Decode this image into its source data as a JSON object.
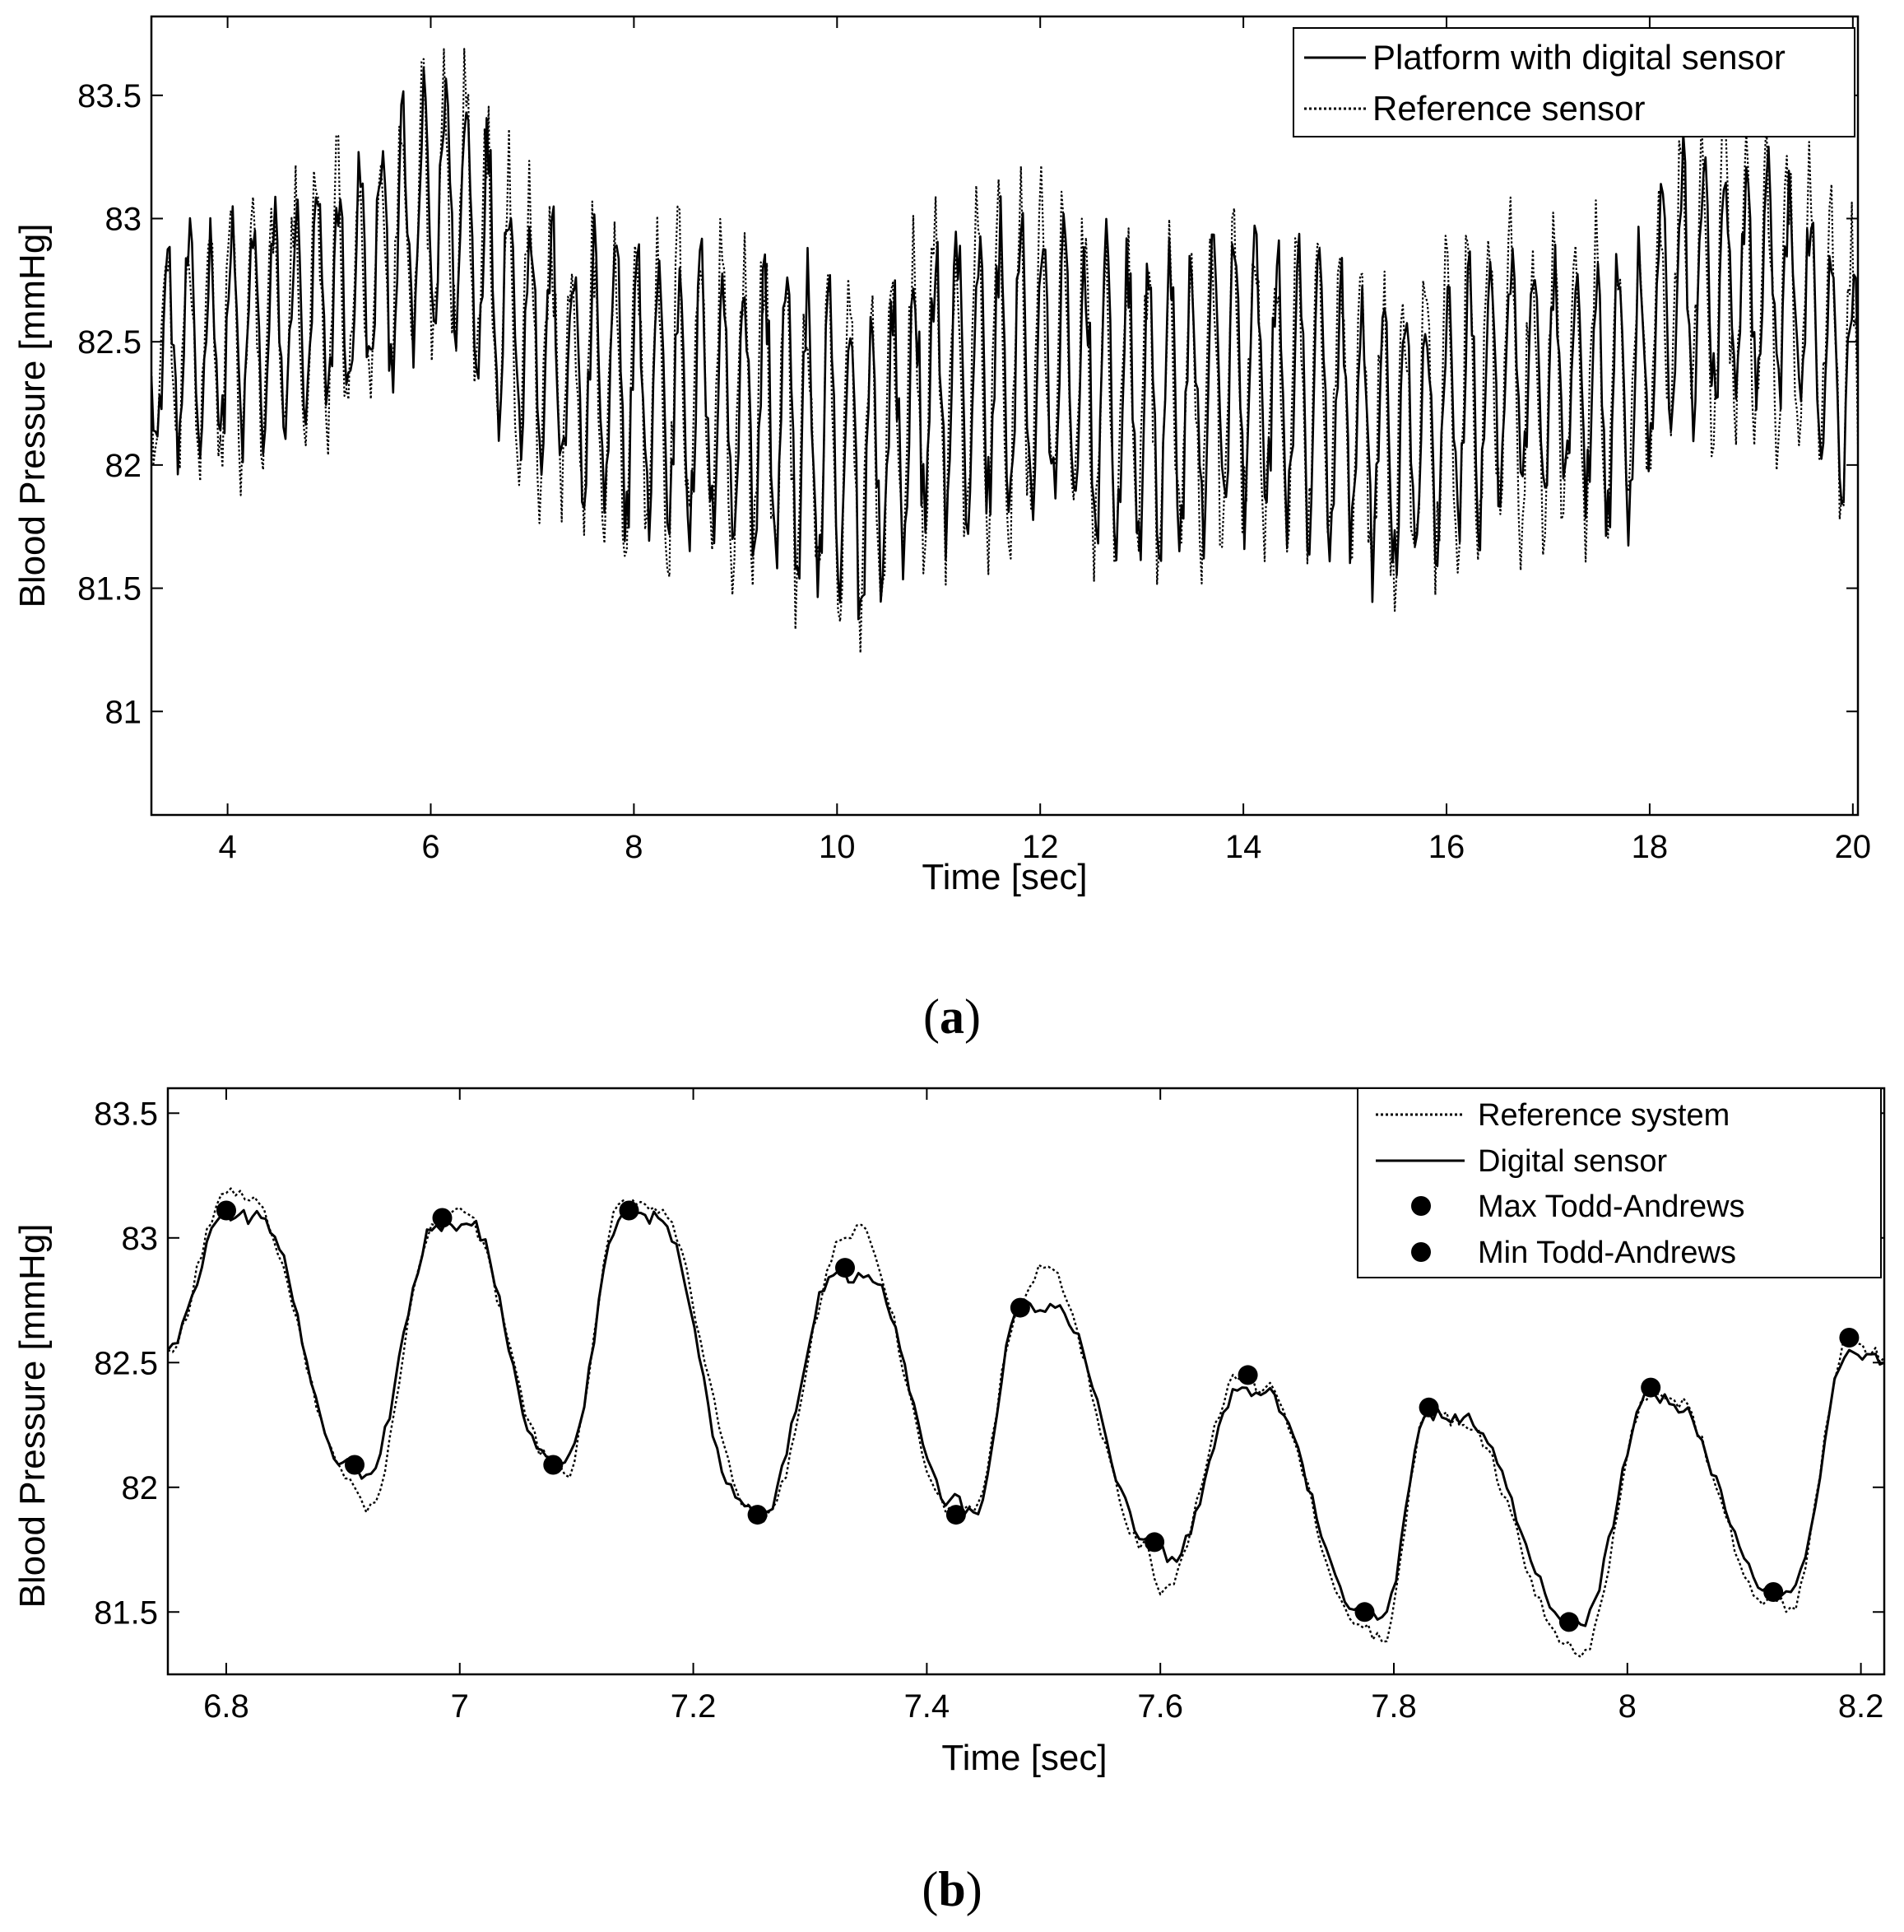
{
  "chart_data": [
    {
      "type": "line",
      "caption_letter": "a",
      "xlabel": "Time [sec]",
      "ylabel": "Blood Pressure [mmHg]",
      "xlim": [
        3.25,
        20.05
      ],
      "ylim": [
        80.58,
        83.82
      ],
      "xticks": [
        4,
        6,
        8,
        10,
        12,
        14,
        16,
        18,
        20
      ],
      "yticks": [
        81,
        81.5,
        82,
        82.5,
        83,
        83.5
      ],
      "grid": false,
      "legend_position": "top-right",
      "series": [
        {
          "name": "Platform with digital sensor",
          "style": "solid",
          "sample_period": 0.02,
          "pulse_period": 0.21,
          "baseline": [
            [
              3.25,
              82.45
            ],
            [
              4.5,
              82.55
            ],
            [
              5.2,
              82.7
            ],
            [
              6.2,
              83.1
            ],
            [
              6.8,
              82.65
            ],
            [
              7.4,
              82.35
            ],
            [
              8.2,
              82.3
            ],
            [
              9.5,
              82.2
            ],
            [
              10.2,
              81.95
            ],
            [
              11,
              82.35
            ],
            [
              12,
              82.4
            ],
            [
              13,
              82.2
            ],
            [
              14,
              82.35
            ],
            [
              15,
              82.2
            ],
            [
              15.5,
              82.05
            ],
            [
              16.5,
              82.35
            ],
            [
              17.8,
              82.3
            ],
            [
              18.3,
              82.75
            ],
            [
              19.5,
              82.65
            ],
            [
              20.05,
              82.3
            ]
          ],
          "amplitude": [
            [
              3.25,
              0.38
            ],
            [
              6,
              0.45
            ],
            [
              10,
              0.55
            ],
            [
              15,
              0.5
            ],
            [
              20.05,
              0.45
            ]
          ]
        },
        {
          "name": "Reference sensor",
          "style": "dotted",
          "sample_period": 0.02,
          "pulse_period": 0.21,
          "baseline": [
            [
              3.25,
              82.45
            ],
            [
              4.5,
              82.55
            ],
            [
              5.2,
              82.7
            ],
            [
              6.2,
              83.1
            ],
            [
              6.8,
              82.65
            ],
            [
              7.4,
              82.35
            ],
            [
              8.2,
              82.3
            ],
            [
              9.5,
              82.2
            ],
            [
              10.2,
              81.95
            ],
            [
              11,
              82.35
            ],
            [
              12,
              82.4
            ],
            [
              13,
              82.2
            ],
            [
              14,
              82.35
            ],
            [
              15,
              82.2
            ],
            [
              15.5,
              82.05
            ],
            [
              16.5,
              82.35
            ],
            [
              17.8,
              82.3
            ],
            [
              18.3,
              82.75
            ],
            [
              19.5,
              82.65
            ],
            [
              20.05,
              82.3
            ]
          ],
          "amplitude": [
            [
              3.25,
              0.45
            ],
            [
              6,
              0.52
            ],
            [
              10,
              0.62
            ],
            [
              15,
              0.58
            ],
            [
              20.05,
              0.52
            ]
          ]
        }
      ]
    },
    {
      "type": "line",
      "caption_letter": "b",
      "xlabel": "Time [sec]",
      "ylabel": "Blood Pressure [mmHg]",
      "xlim": [
        6.75,
        8.22
      ],
      "ylim": [
        81.25,
        83.6
      ],
      "xticks": [
        6.8,
        7,
        7.2,
        7.4,
        7.6,
        7.8,
        8,
        8.2
      ],
      "yticks": [
        81.5,
        82,
        82.5,
        83,
        83.5
      ],
      "grid": false,
      "legend_position": "top-right",
      "series": [
        {
          "name": "Reference system",
          "style": "dotted",
          "x": [
            6.75,
            6.8,
            6.82,
            6.91,
            6.92,
            6.98,
            7.0,
            7.08,
            7.09,
            7.14,
            7.17,
            7.25,
            7.26,
            7.33,
            7.34,
            7.42,
            7.44,
            7.48,
            7.5,
            7.59,
            7.6,
            7.67,
            7.69,
            7.77,
            7.79,
            7.83,
            7.86,
            7.95,
            7.96,
            8.02,
            8.04,
            8.12,
            8.14,
            8.19,
            8.22
          ],
          "y": [
            82.55,
            83.18,
            83.15,
            82.0,
            81.9,
            83.05,
            83.12,
            82.1,
            82.05,
            83.15,
            83.1,
            81.92,
            81.86,
            83.0,
            83.05,
            81.92,
            81.9,
            82.72,
            82.88,
            81.75,
            81.57,
            82.45,
            82.4,
            81.45,
            81.38,
            82.32,
            82.25,
            81.38,
            81.32,
            82.38,
            82.35,
            81.55,
            81.52,
            82.6,
            82.52
          ]
        },
        {
          "name": "Digital sensor",
          "style": "solid",
          "x": [
            6.75,
            6.8,
            6.83,
            6.9,
            6.92,
            6.98,
            7.01,
            7.07,
            7.09,
            7.14,
            7.17,
            7.24,
            7.26,
            7.32,
            7.35,
            7.42,
            7.44,
            7.48,
            7.51,
            7.59,
            7.61,
            7.67,
            7.69,
            7.77,
            7.79,
            7.83,
            7.86,
            7.95,
            7.96,
            8.02,
            8.04,
            8.12,
            8.14,
            8.19,
            8.22
          ],
          "y": [
            82.55,
            83.1,
            83.08,
            82.1,
            82.05,
            83.05,
            83.05,
            82.15,
            82.1,
            83.1,
            83.08,
            81.95,
            81.9,
            82.85,
            82.85,
            81.95,
            81.9,
            82.72,
            82.72,
            81.8,
            81.72,
            82.4,
            82.38,
            81.52,
            81.48,
            82.3,
            82.28,
            81.48,
            81.45,
            82.38,
            82.33,
            81.6,
            81.58,
            82.55,
            82.5
          ]
        },
        {
          "name": "Max Todd-Andrews",
          "style": "marker",
          "x": [
            6.8,
            6.985,
            7.145,
            7.33,
            7.48,
            7.675,
            7.83,
            8.02,
            8.19
          ],
          "y": [
            83.11,
            83.08,
            83.11,
            82.88,
            82.72,
            82.45,
            82.32,
            82.4,
            82.6
          ]
        },
        {
          "name": "Min Todd-Andrews",
          "style": "marker",
          "x": [
            6.91,
            7.08,
            7.255,
            7.425,
            7.595,
            7.775,
            7.95,
            8.125
          ],
          "y": [
            82.09,
            82.09,
            81.89,
            81.89,
            81.78,
            81.5,
            81.46,
            81.58
          ]
        }
      ]
    }
  ]
}
